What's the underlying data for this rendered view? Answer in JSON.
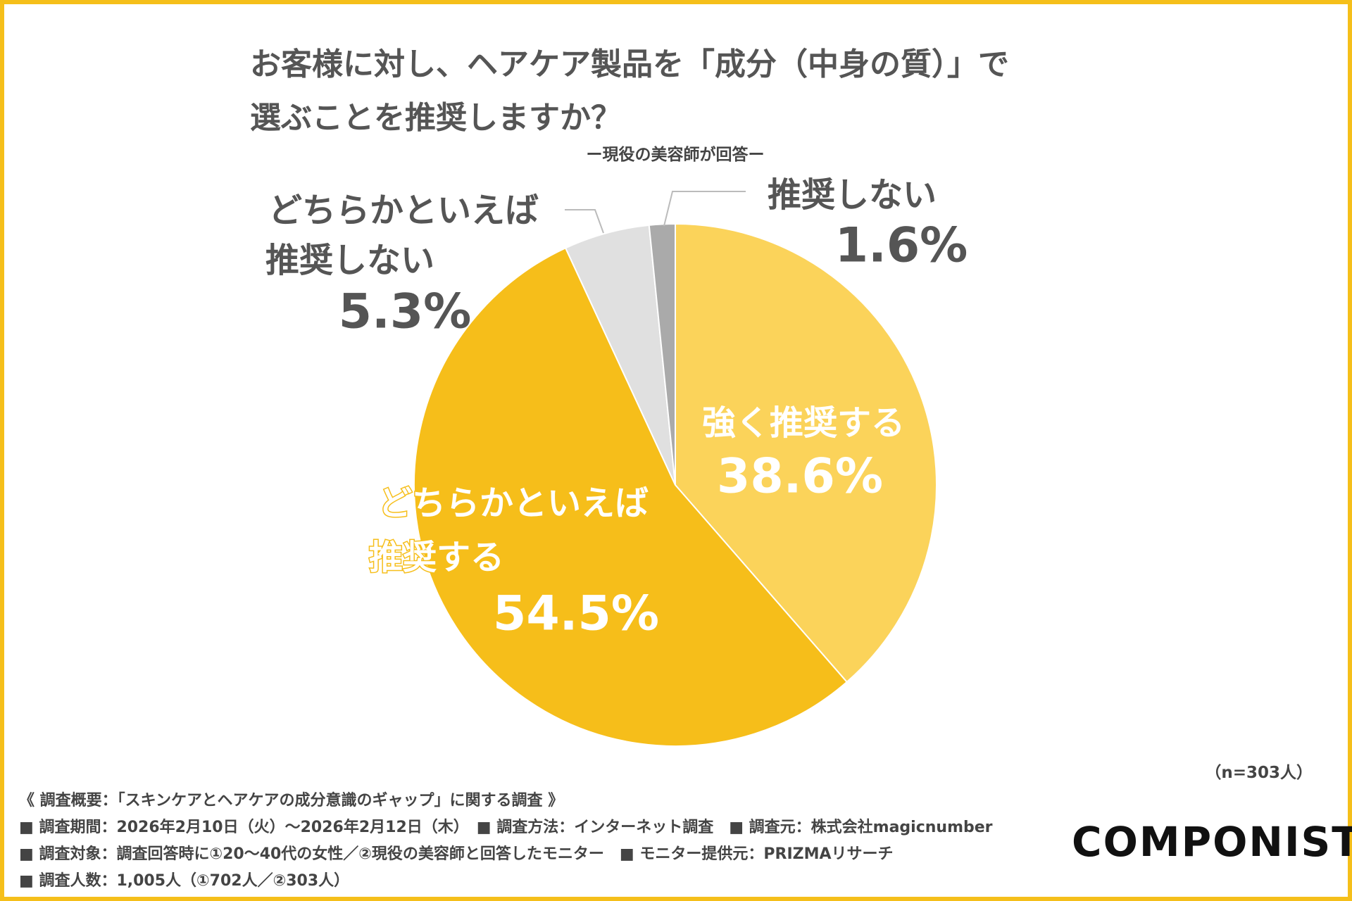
{
  "title": {
    "line1": "お客様に対し、ヘアケア製品を「成分（中身の質）」で",
    "line2": "選ぶことを推奨しますか？"
  },
  "subtitle": "ー現役の美容師が回答ー",
  "chart_data": {
    "type": "pie",
    "title": "お客様に対し、ヘアケア製品を「成分（中身の質）」で選ぶことを推奨しますか？",
    "subtitle": "ー現役の美容師が回答ー",
    "slices": [
      {
        "label_lines": [
          "強く推奨する"
        ],
        "value": 38.6,
        "value_label": "38.6%",
        "color": "#fbd35a"
      },
      {
        "label_lines": [
          "どちらかといえば",
          "推奨する"
        ],
        "value": 54.5,
        "value_label": "54.5%",
        "color": "#f6be1a"
      },
      {
        "label_lines": [
          "どちらかといえば",
          "推奨しない"
        ],
        "value": 5.3,
        "value_label": "5.3%",
        "color": "#e0e0e0"
      },
      {
        "label_lines": [
          "推奨しない"
        ],
        "value": 1.6,
        "value_label": "1.6%",
        "color": "#aaaaaa"
      }
    ],
    "start": "top, clockwise"
  },
  "n_label": "（n=303人）",
  "footer": [
    "《 調査概要：「スキンケアとヘアケアの成分意識のギャップ」に関する調査 》",
    "■ 調査期間：2026年2月10日（火）〜2026年2月12日（木）　■ 調査方法：インターネット調査　■ 調査元：株式会社magicnumber",
    "■ 調査対象：調査回答時に①20〜40代の女性／②現役の美容師と回答したモニター　■ モニター提供元：PRIZMAリサーチ",
    "■ 調査人数：1,005人（①702人／②303人）"
  ],
  "logo": "COMPONIST",
  "frame_color": "#f5bf1a"
}
